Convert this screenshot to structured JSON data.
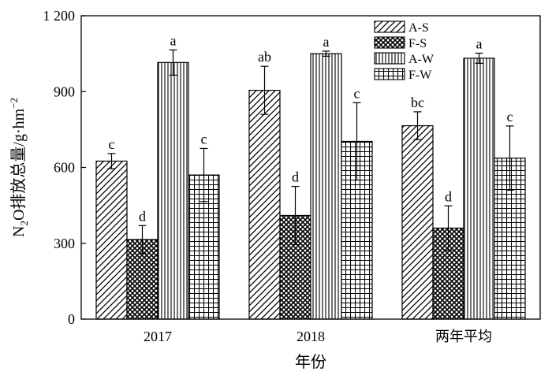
{
  "chart_data": {
    "type": "bar",
    "xlabel": "年份",
    "ylabel": "N2O排放总量/g·hm−2",
    "ylabel_parts": {
      "a": "N",
      "sub": "2",
      "b": "O排放总量/g·hm",
      "sup": "−2"
    },
    "ylim": [
      0,
      1200
    ],
    "yticks": [
      0,
      300,
      600,
      900,
      1200
    ],
    "ytick_labels": [
      "0",
      "300",
      "600",
      "900",
      "1 200"
    ],
    "categories": [
      "2017",
      "2018",
      "两年平均"
    ],
    "legend_position": "top-right",
    "grid": false,
    "series": [
      {
        "name": "A-S",
        "pattern": "diag",
        "values": [
          625,
          905,
          765
        ],
        "errors": [
          30,
          95,
          55
        ],
        "labels": [
          "c",
          "ab",
          "bc"
        ]
      },
      {
        "name": "F-S",
        "pattern": "cross",
        "values": [
          315,
          410,
          360
        ],
        "errors": [
          55,
          115,
          88
        ],
        "labels": [
          "d",
          "d",
          "d"
        ]
      },
      {
        "name": "A-W",
        "pattern": "vert",
        "values": [
          1015,
          1050,
          1032
        ],
        "errors": [
          50,
          10,
          20
        ],
        "labels": [
          "a",
          "a",
          "a"
        ]
      },
      {
        "name": "F-W",
        "pattern": "grid",
        "values": [
          570,
          703,
          637
        ],
        "errors": [
          105,
          153,
          127
        ],
        "labels": [
          "c",
          "c",
          "c"
        ]
      }
    ]
  }
}
